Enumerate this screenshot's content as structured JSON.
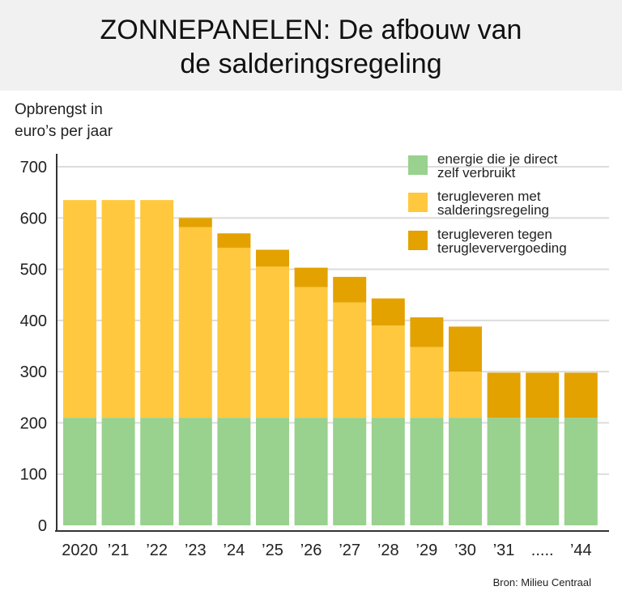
{
  "chart_data": {
    "type": "bar",
    "stacked": true,
    "title_line1": "ZONNEPANELEN: De afbouw van",
    "title_line2": "de salderingsregeling",
    "ylabel_line1": "Opbrengst in",
    "ylabel_line2": "euro’s per jaar",
    "source": "Bron: Milieu Centraal",
    "ylim": [
      0,
      700
    ],
    "yticks": [
      0,
      100,
      200,
      300,
      400,
      500,
      600,
      700
    ],
    "grid": true,
    "legend_position": "top-right",
    "categories": [
      "2020",
      "’21",
      "’22",
      "’23",
      "’24",
      "’25",
      "’26",
      "’27",
      "’28",
      "’29",
      "’30",
      "’31",
      ".....",
      "’44"
    ],
    "series": [
      {
        "name": "energie die je direct zelf verbruikt",
        "legend_lines": [
          "energie die je direct",
          "zelf verbruikt"
        ],
        "color": "#99d18f",
        "values": [
          210,
          210,
          210,
          210,
          210,
          210,
          210,
          210,
          210,
          210,
          210,
          210,
          210,
          210
        ]
      },
      {
        "name": "terugleveren met salderingsregeling",
        "legend_lines": [
          "terugleveren met",
          "salderingsregeling"
        ],
        "color": "#ffc83e",
        "values": [
          425,
          425,
          425,
          372,
          332,
          295,
          255,
          225,
          180,
          138,
          90,
          0,
          0,
          0
        ]
      },
      {
        "name": "terugleveren tegen terugleververgoeding",
        "legend_lines": [
          "terugleveren tegen",
          "terugleververgoeding"
        ],
        "color": "#e3a200",
        "values": [
          0,
          0,
          0,
          18,
          28,
          33,
          38,
          50,
          53,
          58,
          88,
          88,
          88,
          88
        ]
      }
    ]
  }
}
